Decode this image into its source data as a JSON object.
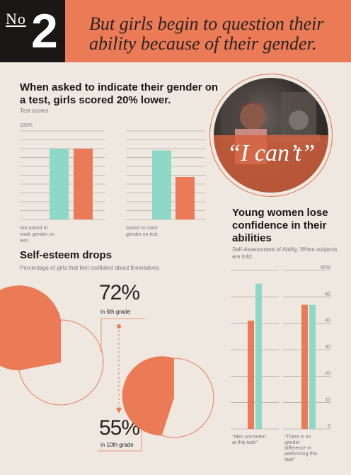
{
  "header": {
    "number_prefix": "No",
    "number": "2",
    "headline": "But girls begin to question their ability because of their gender."
  },
  "photo": {
    "quote": "“I can’t”"
  },
  "colors": {
    "coral": "#ea7b56",
    "mint": "#8ed8c8",
    "dark": "#1a1716",
    "background": "#efe8e1"
  },
  "chart_data": [
    {
      "type": "bar",
      "title": "When asked to indicate their gender on a test, girls scored 20% lower.",
      "ylabel": "Test scores",
      "ytick_label": "100%",
      "ylim": [
        0,
        100
      ],
      "groups": [
        {
          "label": "Not asked to mark gender on test",
          "values": [
            80,
            80
          ]
        },
        {
          "label": "Asked to mark gender on test",
          "values": [
            78,
            48
          ]
        }
      ]
    },
    {
      "type": "bar",
      "title": "Young women lose confidence in their abilities",
      "subtitle": "Self-Assessment of Ability, When subjects are told:",
      "ylim": [
        0,
        60
      ],
      "yticks": [
        "0",
        "10",
        "20",
        "30",
        "40",
        "50",
        "60%"
      ],
      "groups": [
        {
          "label": "“Men are better at this task”",
          "values": [
            41,
            55
          ]
        },
        {
          "label": "“There is no gender difference in performing this task”",
          "values": [
            47,
            47
          ]
        }
      ]
    },
    {
      "type": "pie",
      "title": "Self-esteem drops",
      "subtitle": "Percentage of girls that feel confident about themselves",
      "slices": [
        {
          "label": "in 6th grade",
          "value": 72,
          "display": "72%"
        },
        {
          "label": "in 10th grade",
          "value": 55,
          "display": "55%"
        }
      ]
    }
  ]
}
